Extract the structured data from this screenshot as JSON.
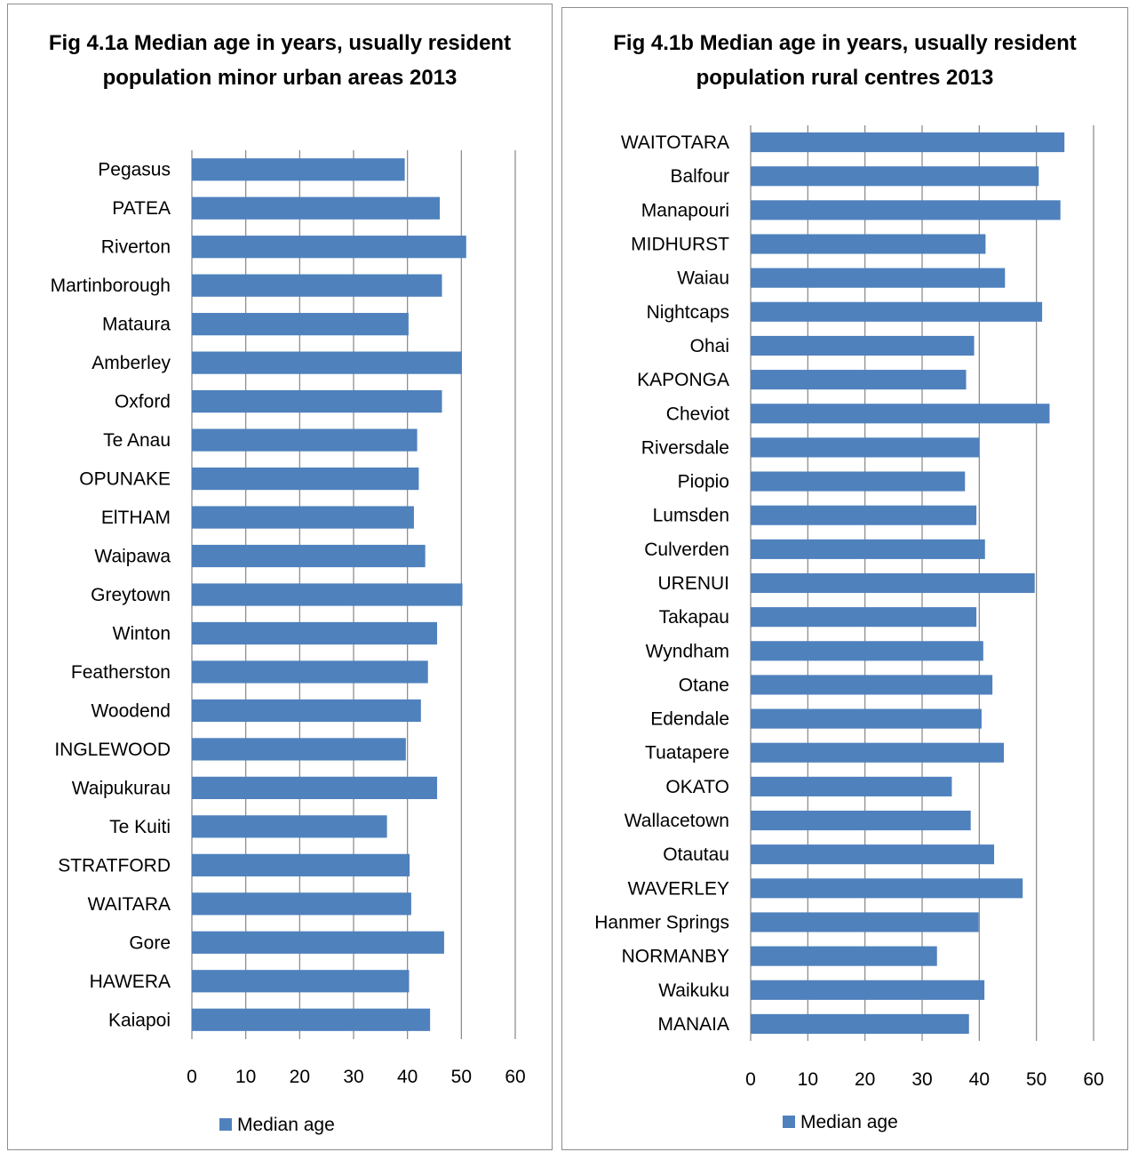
{
  "colors": {
    "bar": "#4f81bd",
    "grid": "#868686",
    "axis": "#868686"
  },
  "chart_data": [
    {
      "type": "bar",
      "orientation": "horizontal",
      "title": "Fig 4.1a Median age in years, usually resident population minor urban areas 2013",
      "categories": [
        "Pegasus",
        "PATEA",
        "Riverton",
        "Martinborough",
        "Mataura",
        "Amberley",
        "Oxford",
        "Te Anau",
        "OPUNAKE",
        "ElTHAM",
        "Waipawa",
        "Greytown",
        "Winton",
        "Featherston",
        "Woodend",
        "INGLEWOOD",
        "Waipukurau",
        "Te Kuiti",
        "STRATFORD",
        "WAITARA",
        "Gore",
        "HAWERA",
        "Kaiapoi"
      ],
      "series": [
        {
          "name": "Median age",
          "values": [
            39.5,
            46,
            50.9,
            46.4,
            40.2,
            50.1,
            46.4,
            41.8,
            42.1,
            41.2,
            43.3,
            50.2,
            45.5,
            43.8,
            42.5,
            39.7,
            45.5,
            36.2,
            40.4,
            40.7,
            46.8,
            40.3,
            44.2
          ]
        }
      ],
      "xticks": [
        "0",
        "10",
        "20",
        "30",
        "40",
        "50",
        "60"
      ],
      "xlim": [
        0,
        60
      ],
      "grid": true,
      "legend": "bottom"
    },
    {
      "type": "bar",
      "orientation": "horizontal",
      "title": "Fig 4.1b Median age in years, usually resident population rural centres 2013",
      "categories": [
        "WAITOTARA",
        "Balfour",
        "Manapouri",
        "MIDHURST",
        "Waiau",
        "Nightcaps",
        "Ohai",
        "KAPONGA",
        "Cheviot",
        "Riversdale",
        "Piopio",
        "Lumsden",
        "Culverden",
        "URENUI",
        "Takapau",
        "Wyndham",
        "Otane",
        "Edendale",
        "Tuatapere",
        "OKATO",
        "Wallacetown",
        "Otautau",
        "WAVERLEY",
        "Hanmer Springs",
        "NORMANBY",
        "Waikuku",
        "MANAIA"
      ],
      "series": [
        {
          "name": "Median age",
          "values": [
            54.9,
            50.4,
            54.2,
            41.1,
            44.5,
            51,
            39.1,
            37.7,
            52.3,
            40,
            37.5,
            39.5,
            41,
            49.7,
            39.5,
            40.7,
            42.3,
            40.4,
            44.3,
            35.2,
            38.5,
            42.6,
            47.6,
            39.9,
            32.6,
            40.9,
            38.2
          ]
        }
      ],
      "xticks": [
        "0",
        "10",
        "20",
        "30",
        "40",
        "50",
        "60"
      ],
      "xlim": [
        0,
        60
      ],
      "grid": true,
      "legend": "bottom"
    }
  ]
}
